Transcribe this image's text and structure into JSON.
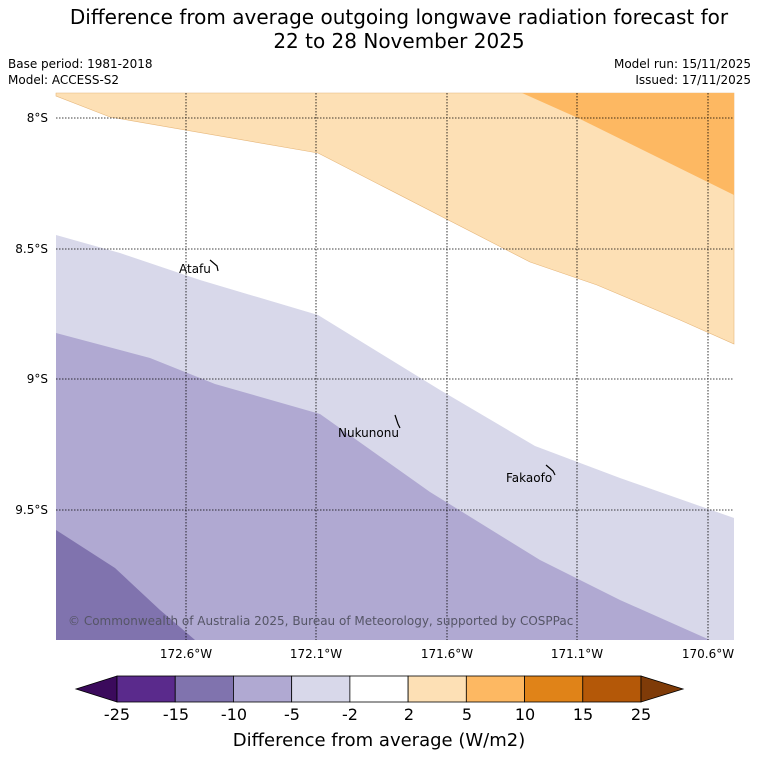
{
  "title": {
    "line1": "Difference from average outgoing longwave radiation forecast for",
    "line2": "22 to 28 November 2025"
  },
  "meta": {
    "base_period": "Base period: 1981-2018",
    "model": "Model: ACCESS-S2",
    "model_run": "Model run: 15/11/2025",
    "issued": "Issued: 17/11/2025"
  },
  "axes": {
    "lat_labels": [
      "8°S",
      "8.5°S",
      "9°S",
      "9.5°S"
    ],
    "lon_labels": [
      "172.6°W",
      "172.1°W",
      "171.6°W",
      "171.1°W",
      "170.6°W"
    ]
  },
  "places": [
    {
      "name": "Atafu"
    },
    {
      "name": "Nukunonu"
    },
    {
      "name": "Fakaofo"
    }
  ],
  "copyright": "© Commonwealth of Australia 2025, Bureau of Meteorology, supported by COSPPac",
  "colorbar": {
    "ticks": [
      "-25",
      "-15",
      "-10",
      "-5",
      "-2",
      "2",
      "5",
      "10",
      "15",
      "25"
    ],
    "colors": [
      "#5a2a8c",
      "#8073ae",
      "#b0a9d2",
      "#d8d8ea",
      "#ffffff",
      "#fde0b5",
      "#fdb862",
      "#e08318",
      "#b45808"
    ],
    "under_color": "#3b0a5c",
    "over_color": "#7f3b08",
    "label": "Difference from average (W/m2)"
  },
  "map_colors": {
    "orange_light": "#fde0b5",
    "orange_mid": "#fdb862",
    "purple_lightest": "#d8d8ea",
    "purple_light": "#b0a9d2",
    "purple_mid": "#8073ae"
  }
}
